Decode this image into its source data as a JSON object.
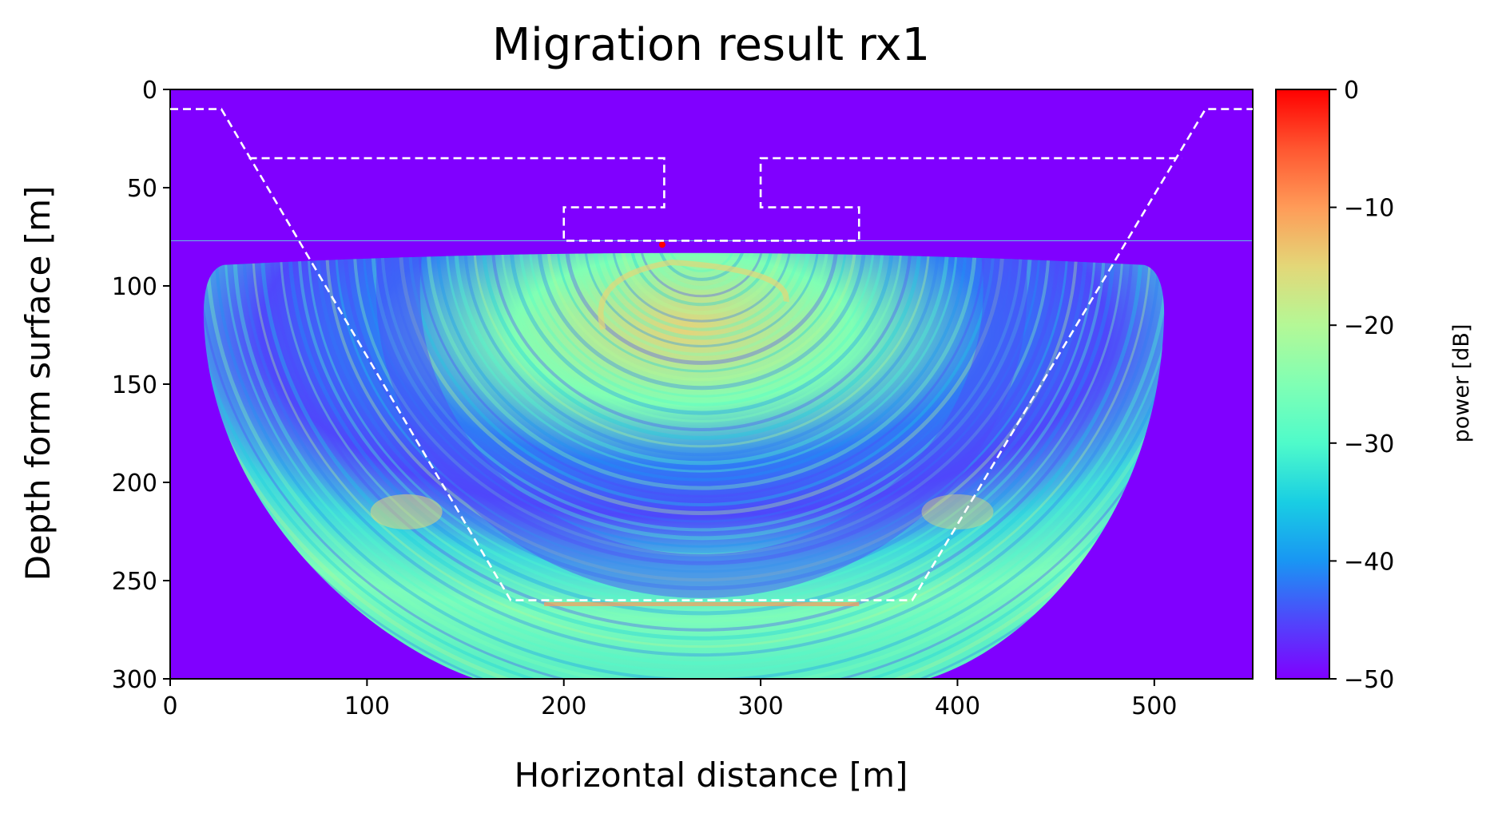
{
  "chart_data": {
    "type": "heatmap",
    "title": "Migration result rx1",
    "xlabel": "Horizontal distance [m]",
    "ylabel": "Depth form surface [m]",
    "xlim": [
      0,
      550
    ],
    "ylim": [
      300,
      0
    ],
    "x_ticks": [
      0,
      100,
      200,
      300,
      400,
      500
    ],
    "y_ticks": [
      0,
      50,
      100,
      150,
      200,
      250,
      300
    ],
    "colorbar": {
      "label": "power [dB]",
      "range": [
        -50,
        0
      ],
      "ticks": [
        0,
        -10,
        -20,
        -30,
        -40,
        -50
      ],
      "tick_labels": [
        "0",
        "−10",
        "−20",
        "−30",
        "−40",
        "−50"
      ],
      "colormap": "rainbow",
      "colors": [
        "#8000ff",
        "#4f47fb",
        "#1996f3",
        "#19cee3",
        "#4ffbca",
        "#80ffb4",
        "#b4f896",
        "#e3d778",
        "#ff9b58",
        "#ff5630",
        "#ff0000"
      ]
    },
    "background_value_db": -50,
    "background_color": "#8000ff",
    "grid": false,
    "outline_color": "#ffffff",
    "outline_style": "dashed",
    "outlines": [
      {
        "name": "trench",
        "points": [
          [
            0,
            10
          ],
          [
            26,
            10
          ],
          [
            173,
            260
          ],
          [
            377,
            260
          ],
          [
            526,
            10
          ],
          [
            550,
            10
          ]
        ]
      },
      {
        "name": "left-structure",
        "points": [
          [
            40,
            35
          ],
          [
            251,
            35
          ],
          [
            251,
            60
          ],
          [
            200,
            60
          ],
          [
            200,
            77
          ],
          [
            350,
            77
          ],
          [
            350,
            60
          ],
          [
            300,
            60
          ],
          [
            300,
            35
          ],
          [
            514,
            35
          ]
        ]
      }
    ],
    "image_region": {
      "surface_line_depth": 77,
      "semi_ellipse": {
        "center_x": 270,
        "top_depth": 82,
        "left_x": 17,
        "right_x": 505,
        "bottom_depth": 300,
        "bottom_left_x": 155,
        "bottom_right_x": 385
      }
    },
    "highlights": [
      {
        "label": "hot-spot",
        "x": 250,
        "y": 79,
        "value_db": 0
      },
      {
        "label": "top-arc",
        "x": 255,
        "y": 110,
        "value_db": -15
      },
      {
        "label": "bottom-reflection",
        "x": 270,
        "y": 262,
        "value_db": -12
      }
    ]
  }
}
